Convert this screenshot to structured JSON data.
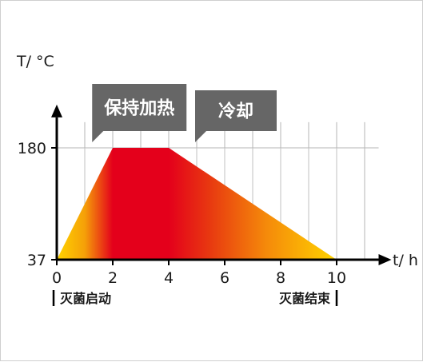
{
  "chart_data": {
    "type": "area",
    "xlabel": "t/ h",
    "ylabel": "T/ °C",
    "x_ticks": [
      0,
      2,
      4,
      6,
      8,
      10
    ],
    "y_ticks": [
      37,
      180
    ],
    "xlim": [
      0,
      11.5
    ],
    "ylim": [
      37,
      219
    ],
    "grid": true,
    "series": [
      {
        "x": [
          0,
          2,
          4,
          10
        ],
        "y": [
          37,
          180,
          180,
          37
        ]
      }
    ],
    "colors": {
      "hot": "#e4001b",
      "warm": "#f25a10",
      "cool": "#ffd400",
      "axis": "#000000",
      "grid": "#b5b5b5",
      "callout": "#666666"
    },
    "annotations": [
      {
        "text": "保持加热",
        "x": 2.95,
        "y": 180
      },
      {
        "text": "冷却",
        "x": 6.4,
        "y": 180
      }
    ],
    "footnotes": {
      "start": "灭菌启动",
      "end": "灭菌结束"
    }
  }
}
